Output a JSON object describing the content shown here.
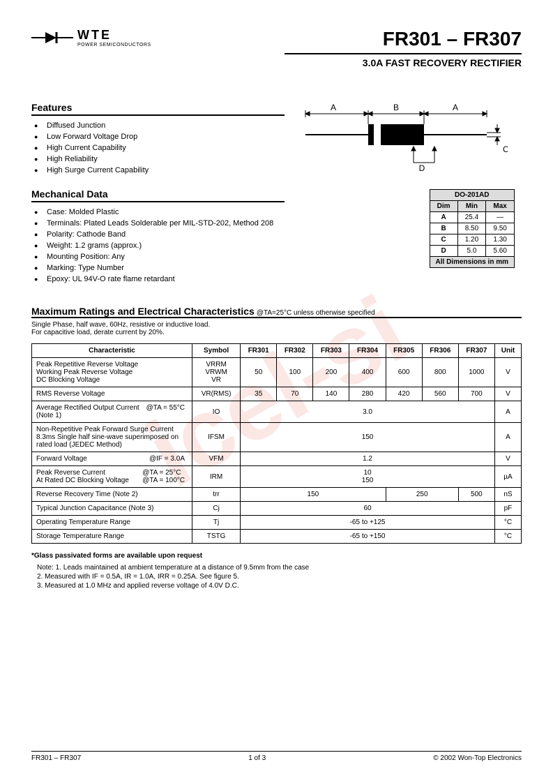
{
  "watermark": "icel-si",
  "logo": {
    "brand": "WTE",
    "tagline": "POWER SEMICONDUCTORS"
  },
  "title": {
    "part": "FR301 – FR307",
    "subtitle": "3.0A FAST RECOVERY RECTIFIER"
  },
  "features": {
    "heading": "Features",
    "items": [
      "Diffused Junction",
      "Low Forward Voltage Drop",
      "High Current Capability",
      "High Reliability",
      "High Surge Current Capability"
    ]
  },
  "mechanical": {
    "heading": "Mechanical Data",
    "items": [
      "Case: Molded Plastic",
      "Terminals: Plated Leads Solderable per MIL-STD-202, Method 208",
      "Polarity: Cathode Band",
      "Weight: 1.2 grams (approx.)",
      "Mounting Position: Any",
      "Marking: Type Number",
      "Epoxy: UL 94V-O rate flame retardant"
    ]
  },
  "package_diagram": {
    "labels": [
      "A",
      "B",
      "A",
      "C",
      "D"
    ]
  },
  "dim_table": {
    "title": "DO-201AD",
    "headers": [
      "Dim",
      "Min",
      "Max"
    ],
    "rows": [
      [
        "A",
        "25.4",
        "—"
      ],
      [
        "B",
        "8.50",
        "9.50"
      ],
      [
        "C",
        "1.20",
        "1.30"
      ],
      [
        "D",
        "5.0",
        "5.60"
      ]
    ],
    "footer": "All Dimensions in mm"
  },
  "ratings": {
    "heading": "Maximum Ratings and Electrical Characteristics",
    "condition": "@TA=25°C unless otherwise specified",
    "note": "Single Phase, half wave, 60Hz, resistive or inductive load.\nFor capacitive load, derate current by 20%.",
    "headers": [
      "Characteristic",
      "Symbol",
      "FR301",
      "FR302",
      "FR303",
      "FR304",
      "FR305",
      "FR306",
      "FR307",
      "Unit"
    ],
    "rows": [
      {
        "char": "Peak Repetitive Reverse Voltage\nWorking Peak Reverse Voltage\nDC Blocking Voltage",
        "sym": "VRRM\nVRWM\nVR",
        "vals": [
          "50",
          "100",
          "200",
          "400",
          "600",
          "800",
          "1000"
        ],
        "unit": "V"
      },
      {
        "char": "RMS Reverse Voltage",
        "sym": "VR(RMS)",
        "vals": [
          "35",
          "70",
          "140",
          "280",
          "420",
          "560",
          "700"
        ],
        "unit": "V"
      },
      {
        "char": "Average Rectified Output Current\n(Note 1)",
        "cond": "@TA = 55°C",
        "sym": "IO",
        "span": "3.0",
        "unit": "A"
      },
      {
        "char": "Non-Repetitive Peak Forward Surge Current\n8.3ms Single half sine-wave superimposed on\nrated load (JEDEC Method)",
        "sym": "IFSM",
        "span": "150",
        "unit": "A"
      },
      {
        "char": "Forward Voltage",
        "cond": "@IF = 3.0A",
        "sym": "VFM",
        "span": "1.2",
        "unit": "V"
      },
      {
        "char": "Peak Reverse Current\nAt Rated DC Blocking Voltage",
        "cond": "@TA = 25°C\n@TA = 100°C",
        "sym": "IRM",
        "span": "10\n150",
        "unit": "µA"
      },
      {
        "char": "Reverse Recovery Time (Note 2)",
        "sym": "trr",
        "groups": [
          {
            "span": 4,
            "val": "150"
          },
          {
            "span": 2,
            "val": "250"
          },
          {
            "span": 1,
            "val": "500"
          }
        ],
        "unit": "nS"
      },
      {
        "char": "Typical Junction Capacitance (Note 3)",
        "sym": "Cj",
        "span": "60",
        "unit": "pF"
      },
      {
        "char": "Operating Temperature Range",
        "sym": "Tj",
        "span": "-65 to +125",
        "unit": "°C"
      },
      {
        "char": "Storage Temperature Range",
        "sym": "TSTG",
        "span": "-65 to +150",
        "unit": "°C"
      }
    ]
  },
  "glass_note": "*Glass passivated forms are available upon request",
  "footnotes": [
    "1. Leads maintained at ambient temperature at a distance of 9.5mm from the case",
    "2. Measured with IF = 0.5A, IR = 1.0A, IRR = 0.25A. See figure 5.",
    "3. Measured at 1.0 MHz and applied reverse voltage of 4.0V D.C."
  ],
  "footer": {
    "left": "FR301 – FR307",
    "center": "1  of  3",
    "right": "© 2002 Won-Top Electronics"
  }
}
